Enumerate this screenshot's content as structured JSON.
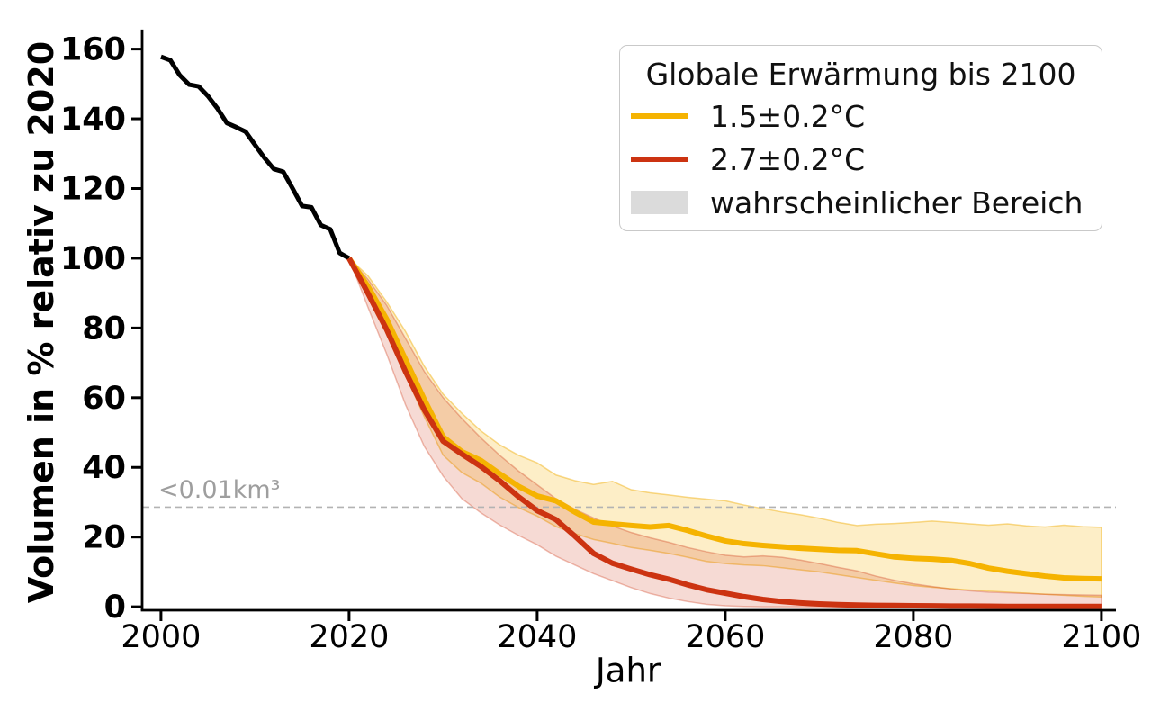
{
  "chart_data": {
    "type": "line",
    "title": "",
    "xlabel": "Jahr",
    "ylabel": "Volumen in % relativ zu 2020",
    "xlim": [
      1998,
      2101.6
    ],
    "ylim": [
      -1,
      165.6
    ],
    "x_ticks": [
      2000,
      2020,
      2040,
      2060,
      2080,
      2100
    ],
    "y_ticks": [
      0,
      20,
      40,
      60,
      80,
      100,
      120,
      140,
      160
    ],
    "grid": false,
    "threshold_line": {
      "y": 28.6,
      "color": "#b3b3b3",
      "style": "dashed"
    },
    "annotation": {
      "text": "<0.01km³",
      "y": 28.6,
      "color": "#9e9e9e"
    },
    "legend": {
      "position": "upper right",
      "title": "Globale Erwärmung bis 2100",
      "items": [
        {
          "label": "1.5±0.2°C",
          "type": "line",
          "color": "#F5B301"
        },
        {
          "label": "2.7±0.2°C",
          "type": "line",
          "color": "#CC3311"
        },
        {
          "label": "wahrscheinlicher Bereich",
          "type": "patch",
          "color": "#DBDBDB"
        }
      ]
    },
    "series": [
      {
        "id": "observed-2000-2020",
        "color": "#000000",
        "linewidth": 5,
        "x": [
          2000,
          2001,
          2002,
          2003,
          2004,
          2005,
          2006,
          2007,
          2008,
          2009,
          2010,
          2011,
          2012,
          2013,
          2014,
          2015,
          2016,
          2017,
          2018,
          2019,
          2020
        ],
        "y": [
          157.8,
          156.8,
          152.5,
          149.8,
          149.3,
          146.5,
          143,
          138.8,
          137.6,
          136.3,
          132.5,
          128.8,
          125.6,
          124.8,
          120,
          115,
          114.6,
          109.5,
          108.3,
          101.5,
          100
        ]
      },
      {
        "id": "warming-1-5",
        "label": "1.5±0.2°C",
        "color": "#F5B301",
        "linewidth": 6,
        "band_fill": "rgba(245,179,1,0.22)",
        "band_edge": "rgba(240,170,0,0.45)",
        "x": [
          2020,
          2022,
          2024,
          2026,
          2028,
          2030,
          2032,
          2034,
          2036,
          2038,
          2040,
          2042,
          2044,
          2046,
          2048,
          2050,
          2052,
          2054,
          2056,
          2058,
          2060,
          2062,
          2064,
          2066,
          2068,
          2070,
          2072,
          2074,
          2076,
          2078,
          2080,
          2082,
          2084,
          2086,
          2088,
          2090,
          2092,
          2094,
          2096,
          2098,
          2100
        ],
        "y": [
          100,
          92,
          82.5,
          71,
          59.5,
          48.8,
          44.5,
          42,
          38.2,
          34.6,
          31.8,
          30.4,
          27.2,
          24.3,
          23.8,
          23.3,
          22.9,
          23.3,
          21.9,
          20.3,
          18.9,
          18.1,
          17.6,
          17.2,
          16.8,
          16.5,
          16.2,
          16.1,
          15.2,
          14.3,
          13.9,
          13.7,
          13.3,
          12.4,
          11.1,
          10.2,
          9.5,
          8.8,
          8.3,
          8.1,
          8
        ],
        "band_upper": [
          100,
          95,
          87.5,
          79,
          69,
          61,
          55.5,
          50.5,
          46.5,
          43.5,
          41.3,
          37.8,
          36.2,
          35.1,
          36,
          33.6,
          32.7,
          32.1,
          31.4,
          30.9,
          30.4,
          29.2,
          28.2,
          27.2,
          26.4,
          25.4,
          24.2,
          23.3,
          23.7,
          23.9,
          24.2,
          24.6,
          24.2,
          23.8,
          23.4,
          23.8,
          23.2,
          22.9,
          23.4,
          23,
          22.8
        ],
        "band_lower": [
          100,
          89,
          78.5,
          66.5,
          54.5,
          43.5,
          38.5,
          35.5,
          31.5,
          28.5,
          26,
          23,
          21,
          19.3,
          18.2,
          17,
          16.2,
          15.3,
          14.2,
          13,
          12.4,
          12,
          11.8,
          11.2,
          10.6,
          10,
          9.2,
          8.4,
          7.6,
          6.8,
          6.1,
          5.6,
          5.2,
          4.8,
          4.5,
          4.2,
          3.9,
          3.6,
          3.3,
          3,
          2.8
        ]
      },
      {
        "id": "warming-2-7",
        "label": "2.7±0.2°C",
        "color": "#CC3311",
        "linewidth": 6,
        "band_fill": "rgba(204,51,17,0.18)",
        "band_edge": "rgba(204,51,17,0.32)",
        "x": [
          2020,
          2022,
          2024,
          2026,
          2028,
          2030,
          2032,
          2034,
          2036,
          2038,
          2040,
          2042,
          2044,
          2046,
          2048,
          2050,
          2052,
          2054,
          2056,
          2058,
          2060,
          2062,
          2064,
          2066,
          2068,
          2070,
          2072,
          2074,
          2076,
          2078,
          2080,
          2082,
          2084,
          2086,
          2088,
          2090,
          2092,
          2094,
          2096,
          2098,
          2100
        ],
        "y": [
          100,
          90,
          79.5,
          67.5,
          56.5,
          47.5,
          43.8,
          40.3,
          36.2,
          31.6,
          27.6,
          25,
          20.3,
          15.3,
          12.5,
          10.8,
          9.2,
          7.9,
          6.3,
          4.9,
          3.9,
          2.9,
          2.1,
          1.5,
          1.1,
          0.8,
          0.6,
          0.5,
          0.4,
          0.35,
          0.3,
          0.25,
          0.2,
          0.2,
          0.15,
          0.1,
          0.1,
          0.1,
          0.1,
          0.1,
          0.1
        ],
        "band_upper": [
          100,
          94,
          86.5,
          77,
          67.5,
          60,
          54,
          48.5,
          43.5,
          39,
          35,
          31,
          28,
          25.5,
          23.2,
          21.3,
          19.8,
          18.5,
          17,
          15.8,
          14.8,
          14.3,
          14.6,
          14.2,
          13.4,
          12.4,
          11.3,
          10.3,
          8.8,
          7.6,
          6.6,
          5.8,
          5.1,
          4.6,
          4.2,
          4,
          3.8,
          3.6,
          3.5,
          3.4,
          3.3
        ],
        "band_lower": [
          100,
          86,
          72.5,
          58,
          46,
          37.5,
          31,
          27,
          23.5,
          20.5,
          17.8,
          14.5,
          12,
          9.5,
          7.5,
          5.5,
          3.8,
          2.5,
          1.5,
          0.7,
          0.3,
          0.1,
          0,
          0,
          0,
          0,
          0,
          0,
          0,
          0,
          0,
          0,
          0,
          0,
          0,
          0,
          0,
          0,
          0,
          0,
          0
        ]
      }
    ]
  }
}
